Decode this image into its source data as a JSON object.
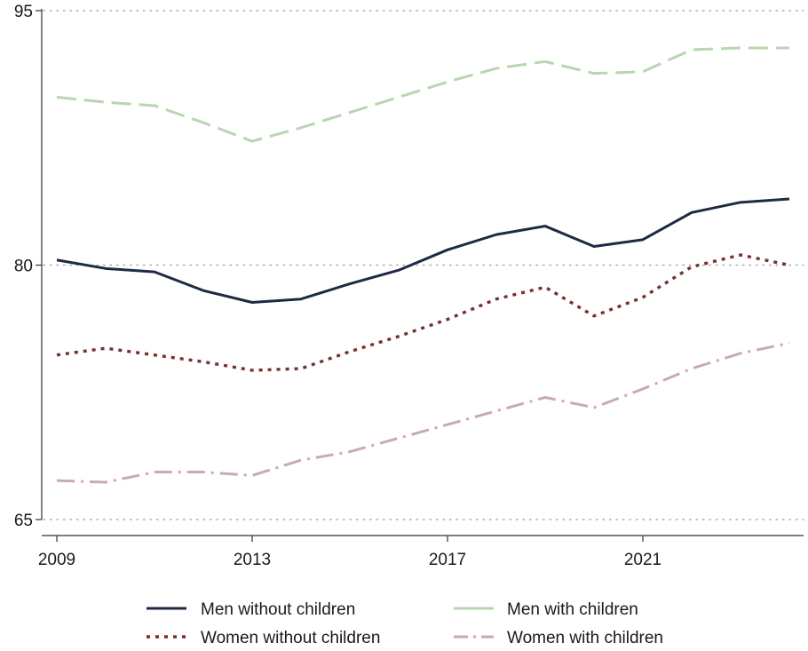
{
  "chart_data": {
    "type": "line",
    "title": "",
    "xlabel": "",
    "ylabel": "",
    "xlim": [
      2009,
      2024
    ],
    "ylim": [
      65,
      95
    ],
    "x_ticks": [
      2009,
      2013,
      2017,
      2021
    ],
    "x_tick_labels": [
      "2009",
      "2013",
      "2017",
      "2021"
    ],
    "y_ticks": [
      65,
      80,
      95
    ],
    "y_tick_labels": [
      "65",
      "80",
      "95"
    ],
    "grid": "horizontal dotted at y ticks",
    "legend_position": "bottom",
    "x": [
      2009,
      2010,
      2011,
      2012,
      2013,
      2014,
      2015,
      2016,
      2017,
      2018,
      2019,
      2020,
      2021,
      2022,
      2023,
      2024
    ],
    "series": [
      {
        "name": "Men without children",
        "color": "#1e2a44",
        "style": "solid",
        "values": [
          80.3,
          79.8,
          79.6,
          78.5,
          77.8,
          78.0,
          78.9,
          79.7,
          80.9,
          81.8,
          82.3,
          81.1,
          81.5,
          83.1,
          83.7,
          83.9
        ]
      },
      {
        "name": "Men with children",
        "color": "#b9d6b2",
        "style": "dashed",
        "values": [
          89.9,
          89.6,
          89.4,
          88.4,
          87.3,
          88.1,
          89.0,
          89.9,
          90.8,
          91.6,
          92.0,
          91.3,
          91.4,
          92.7,
          92.8,
          92.8
        ]
      },
      {
        "name": "Women without children",
        "color": "#7a2f2f",
        "style": "dotted",
        "values": [
          74.7,
          75.1,
          74.7,
          74.3,
          73.8,
          73.9,
          74.9,
          75.8,
          76.8,
          78.0,
          78.7,
          77.0,
          78.1,
          79.9,
          80.6,
          80.0
        ]
      },
      {
        "name": "Women with children",
        "color": "#c8acaa",
        "style": "dashdot",
        "values": [
          67.3,
          67.2,
          67.8,
          67.8,
          67.6,
          68.5,
          69.0,
          69.8,
          70.6,
          71.4,
          72.2,
          71.6,
          72.7,
          73.9,
          74.8,
          75.4
        ]
      }
    ]
  }
}
